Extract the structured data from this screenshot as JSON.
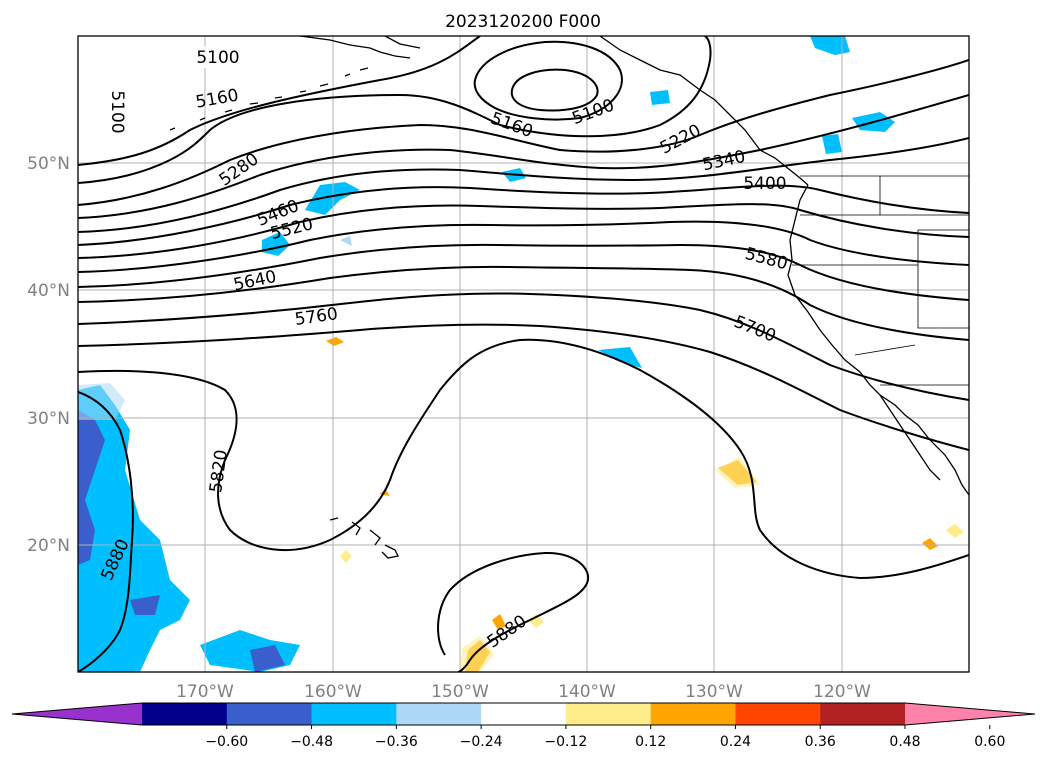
{
  "title": "2023120200 F000",
  "lat_labels": [
    "50°N",
    "40°N",
    "30°N",
    "20°N"
  ],
  "lon_labels": [
    "170°W",
    "160°W",
    "150°W",
    "140°W",
    "130°W",
    "120°W"
  ],
  "contour_labels": [
    "5100",
    "5100",
    "5160",
    "5100",
    "5160",
    "5220",
    "5280",
    "5340",
    "5400",
    "5460",
    "5520",
    "5580",
    "5640",
    "5700",
    "5760",
    "5820",
    "5880",
    "5880"
  ],
  "colorbar": {
    "ticks": [
      "−0.60",
      "−0.48",
      "−0.36",
      "−0.24",
      "−0.12",
      "0.12",
      "0.24",
      "0.36",
      "0.48",
      "0.60"
    ],
    "colors": [
      "#9932cc",
      "#00008b",
      "#3a5fcd",
      "#00bfff",
      "#add8f6",
      "#ffffff",
      "#ffec8b",
      "#ffa500",
      "#ff4500",
      "#b22222",
      "#ff82ab"
    ]
  },
  "map_colors": {
    "frame": "#000000",
    "grid": "#b0b0b0",
    "contour": "#000000"
  }
}
